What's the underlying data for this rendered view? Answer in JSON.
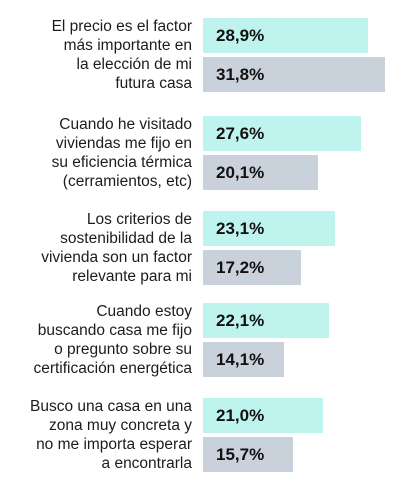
{
  "colors": {
    "series_a": "#bff3ee",
    "series_b": "#c9d2db",
    "text": "#1c1c1c"
  },
  "chart_data": {
    "type": "bar",
    "orientation": "horizontal",
    "categories": [
      "El precio es el factor\nmás importante en\nla elección de mi\nfutura casa",
      "Cuando he visitado\nviviendas me fijo en\nsu eficiencia térmica\n(cerramientos, etc)",
      "Los criterios de\nsostenibilidad de la\nvivienda son un factor\nrelevante para mi",
      "Cuando estoy\nbuscando casa me fijo\no pregunto sobre su\ncertificación energética",
      "Busco una casa en una\nzona muy concreta y\nno me importa esperar\na encontrarla"
    ],
    "series": [
      {
        "values": [
          28.9,
          27.6,
          23.1,
          22.1,
          21.0
        ],
        "labels": [
          "28,9%",
          "27,6%",
          "23,1%",
          "22,1%",
          "21,0%"
        ]
      },
      {
        "values": [
          31.8,
          20.1,
          17.2,
          14.1,
          15.7
        ],
        "labels": [
          "31,8%",
          "20,1%",
          "17,2%",
          "14,1%",
          "15,7%"
        ]
      }
    ],
    "title": "",
    "xlabel": "",
    "ylabel": "",
    "xlim": [
      0,
      31.8
    ],
    "grid": false,
    "legend": "none"
  }
}
